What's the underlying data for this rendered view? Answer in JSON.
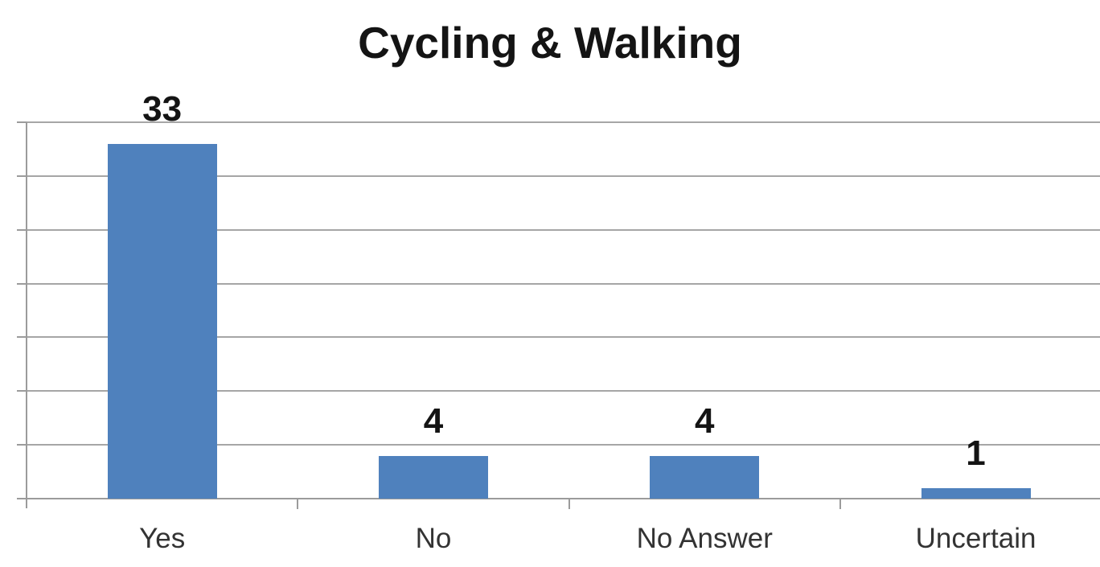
{
  "chart_data": {
    "type": "bar",
    "title": "Cycling & Walking",
    "categories": [
      "Yes",
      "No",
      "No Answer",
      "Uncertain"
    ],
    "values": [
      33,
      4,
      4,
      1
    ],
    "data_labels": [
      "33",
      "4",
      "4",
      "1"
    ],
    "xlabel": "",
    "ylabel": "",
    "ylim": [
      0,
      35
    ],
    "y_major_unit": 5,
    "y_tick_labels_visible": false,
    "grid": "horizontal-major",
    "legend_position": "none",
    "bar_color": "#4f81bd",
    "gridline_color": "#a6a6a6",
    "axis_color": "#9b9b9b",
    "title_color": "#141414",
    "data_label_color": "#141414",
    "category_label_color": "#333333"
  }
}
